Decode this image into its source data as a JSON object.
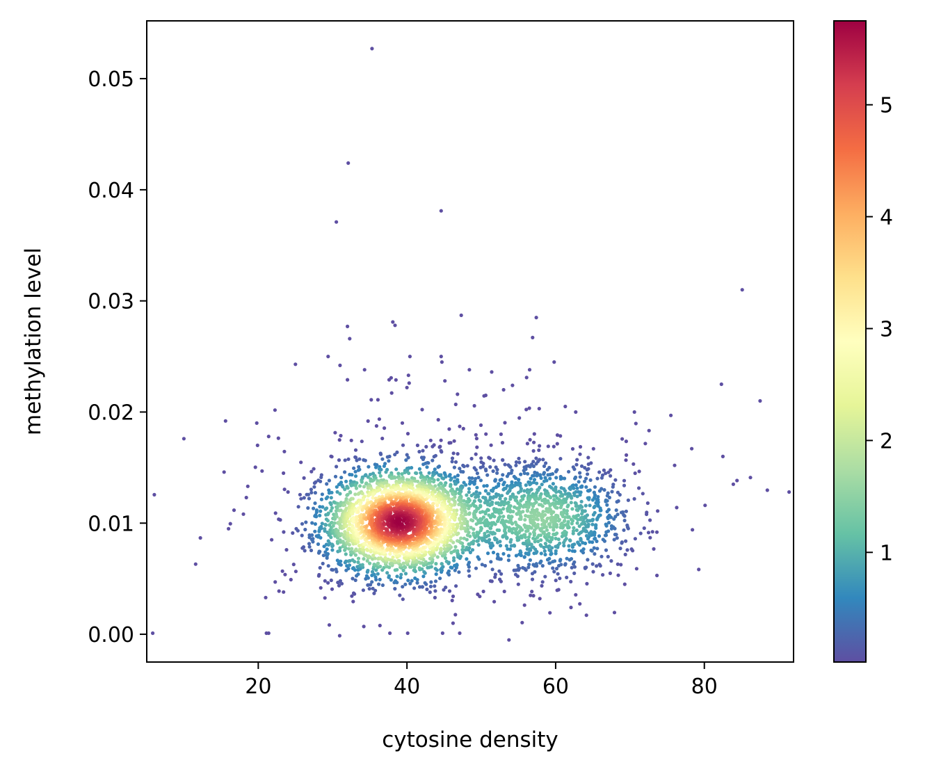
{
  "chart_data": {
    "type": "scatter",
    "title": "",
    "xlabel": "cytosine density",
    "ylabel": "methylation level",
    "xlim": [
      5,
      92
    ],
    "ylim": [
      -0.0025,
      0.0552
    ],
    "xticks": [
      20,
      40,
      60,
      80
    ],
    "xtick_labels": [
      "20",
      "40",
      "60",
      "80"
    ],
    "yticks": [
      0.0,
      0.01,
      0.02,
      0.03,
      0.04,
      0.05
    ],
    "ytick_labels": [
      "0.00",
      "0.01",
      "0.02",
      "0.03",
      "0.04",
      "0.05"
    ],
    "grid": false,
    "colormap": "Spectral_r",
    "colorbar": {
      "range": [
        0.02,
        5.75
      ],
      "ticks": [
        1,
        2,
        3,
        4,
        5
      ],
      "tick_labels": [
        "1",
        "2",
        "3",
        "4",
        "5"
      ]
    },
    "density_model": {
      "main_cluster": {
        "x_center": 39,
        "y_center": 0.0101,
        "x_sd": 5.2,
        "y_sd": 0.0024,
        "peak_density": 5.75
      },
      "secondary_cluster": {
        "x_center": 58,
        "y_center": 0.0105,
        "x_sd": 6.0,
        "y_sd": 0.0025
      }
    },
    "outlier_points": [
      {
        "x": 35.3,
        "y": 0.0527
      },
      {
        "x": 32.1,
        "y": 0.0424
      },
      {
        "x": 44.6,
        "y": 0.0381
      },
      {
        "x": 30.5,
        "y": 0.0371
      },
      {
        "x": 85.1,
        "y": 0.031
      },
      {
        "x": 47.3,
        "y": 0.0287
      },
      {
        "x": 57.4,
        "y": 0.0285
      },
      {
        "x": 38.1,
        "y": 0.0281
      },
      {
        "x": 38.4,
        "y": 0.0278
      },
      {
        "x": 32.0,
        "y": 0.0277
      },
      {
        "x": 32.3,
        "y": 0.0266
      },
      {
        "x": 56.9,
        "y": 0.0267
      },
      {
        "x": 29.4,
        "y": 0.025
      },
      {
        "x": 44.6,
        "y": 0.025
      },
      {
        "x": 40.4,
        "y": 0.025
      },
      {
        "x": 44.7,
        "y": 0.0245
      },
      {
        "x": 59.8,
        "y": 0.0245
      },
      {
        "x": 25.0,
        "y": 0.0243
      },
      {
        "x": 31.0,
        "y": 0.0242
      },
      {
        "x": 34.3,
        "y": 0.0238
      },
      {
        "x": 48.4,
        "y": 0.0238
      },
      {
        "x": 51.4,
        "y": 0.0236
      },
      {
        "x": 56.5,
        "y": 0.0238
      },
      {
        "x": 40.2,
        "y": 0.0233
      },
      {
        "x": 37.6,
        "y": 0.0229
      },
      {
        "x": 32.0,
        "y": 0.0229
      },
      {
        "x": 40.3,
        "y": 0.0226
      },
      {
        "x": 45.1,
        "y": 0.0228
      },
      {
        "x": 56.1,
        "y": 0.0231
      },
      {
        "x": 54.2,
        "y": 0.0224
      },
      {
        "x": 40.0,
        "y": 0.0222
      },
      {
        "x": 53.0,
        "y": 0.022
      },
      {
        "x": 82.3,
        "y": 0.0225
      },
      {
        "x": 87.5,
        "y": 0.021
      },
      {
        "x": 36.1,
        "y": 0.0211
      },
      {
        "x": 35.2,
        "y": 0.0211
      },
      {
        "x": 46.8,
        "y": 0.0216
      },
      {
        "x": 50.6,
        "y": 0.0215
      },
      {
        "x": 61.3,
        "y": 0.0205
      },
      {
        "x": 62.7,
        "y": 0.02
      },
      {
        "x": 70.6,
        "y": 0.02
      },
      {
        "x": 75.5,
        "y": 0.0197
      },
      {
        "x": 15.6,
        "y": 0.0192
      },
      {
        "x": 19.8,
        "y": 0.019
      },
      {
        "x": 10.0,
        "y": 0.0176
      },
      {
        "x": 21.4,
        "y": 0.0178
      },
      {
        "x": 19.9,
        "y": 0.017
      },
      {
        "x": 15.4,
        "y": 0.0146
      },
      {
        "x": 18.4,
        "y": 0.0123
      },
      {
        "x": 82.5,
        "y": 0.016
      },
      {
        "x": 86.2,
        "y": 0.0141
      },
      {
        "x": 83.9,
        "y": 0.0135
      },
      {
        "x": 91.4,
        "y": 0.0128
      },
      {
        "x": 78.3,
        "y": 0.0167
      },
      {
        "x": 76.0,
        "y": 0.0152
      },
      {
        "x": 80.1,
        "y": 0.0116
      },
      {
        "x": 78.4,
        "y": 0.0094
      },
      {
        "x": 21.0,
        "y": 0.0033
      },
      {
        "x": 23.4,
        "y": 0.0038
      },
      {
        "x": 5.8,
        "y": 0.0001
      },
      {
        "x": 21.1,
        "y": 0.0001
      },
      {
        "x": 21.4,
        "y": 0.0001
      },
      {
        "x": 37.7,
        "y": 0.0001
      },
      {
        "x": 40.1,
        "y": 0.0001
      },
      {
        "x": 44.8,
        "y": 0.0001
      },
      {
        "x": 47.1,
        "y": 0.0001
      },
      {
        "x": 34.2,
        "y": 0.0007
      },
      {
        "x": 46.2,
        "y": 0.001
      },
      {
        "x": 21.8,
        "y": 0.0085
      },
      {
        "x": 23.8,
        "y": 0.0076
      },
      {
        "x": 24.0,
        "y": 0.0128
      },
      {
        "x": 70.9,
        "y": 0.0059
      },
      {
        "x": 69.3,
        "y": 0.0045
      }
    ]
  }
}
